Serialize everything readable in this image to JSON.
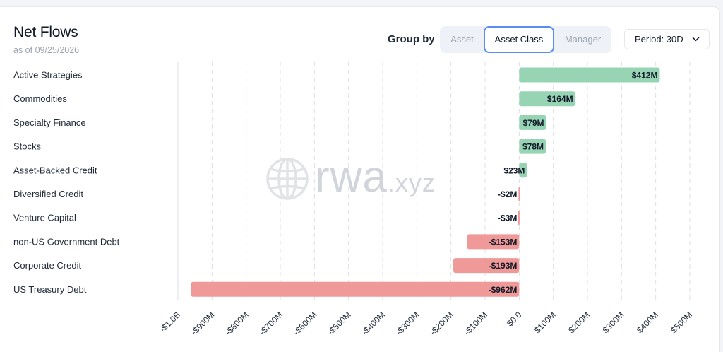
{
  "header": {
    "title": "Net Flows",
    "subtitle": "as of 09/25/2026",
    "group_by_label": "Group by",
    "group_options": [
      "Asset",
      "Asset Class",
      "Manager"
    ],
    "group_selected": "Asset Class",
    "period_label": "Period: 30D"
  },
  "watermark": {
    "word": "rwa",
    "suffix": ".xyz"
  },
  "colors": {
    "positive": "#96d4b4",
    "negative": "#ef9a98",
    "grid": "#dcdfe4"
  },
  "chart_data": {
    "type": "bar",
    "orientation": "horizontal",
    "title": "Net Flows",
    "categories": [
      "Active Strategies",
      "Commodities",
      "Specialty Finance",
      "Stocks",
      "Asset-Backed Credit",
      "Diversified Credit",
      "Venture Capital",
      "non-US Government Debt",
      "Corporate Credit",
      "US Treasury Debt"
    ],
    "values": [
      412,
      164,
      79,
      78,
      23,
      -2,
      -3,
      -153,
      -193,
      -962
    ],
    "value_labels": [
      "$412M",
      "$164M",
      "$79M",
      "$78M",
      "$23M",
      "-$2M",
      "-$3M",
      "-$153M",
      "-$193M",
      "-$962M"
    ],
    "units": "USD millions",
    "xlim": [
      -1000,
      500
    ],
    "xticks": [
      -1000,
      -900,
      -800,
      -700,
      -600,
      -500,
      -400,
      -300,
      -200,
      -100,
      0,
      100,
      200,
      300,
      400,
      500
    ],
    "xtick_labels": [
      "-$1.0B",
      "-$900M",
      "-$800M",
      "-$700M",
      "-$600M",
      "-$500M",
      "-$400M",
      "-$300M",
      "-$200M",
      "-$100M",
      "$0.0",
      "$100M",
      "$200M",
      "$300M",
      "$400M",
      "$500M"
    ],
    "grid": "vertical dashed",
    "legend": "none",
    "xlabel": "",
    "ylabel": ""
  }
}
